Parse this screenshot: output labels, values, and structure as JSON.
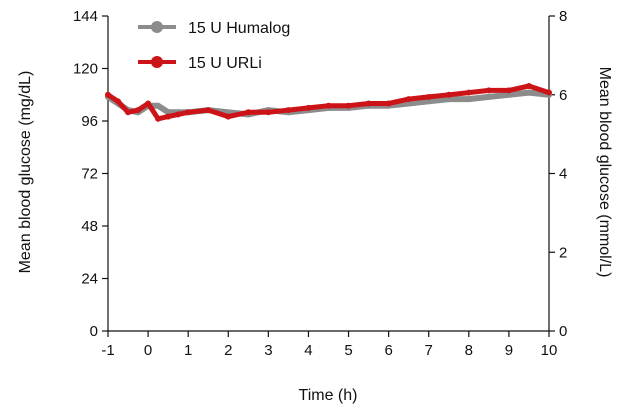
{
  "chart_data": {
    "type": "line",
    "title": "",
    "xlabel": "Time (h)",
    "ylabel": "Mean blood glucose (mg/dL)",
    "y2label": "Mean blood glucose (mmol/L)",
    "xlim": [
      -1,
      10
    ],
    "ylim": [
      0,
      144
    ],
    "y2lim": [
      0,
      8
    ],
    "x_ticks": [
      -1,
      0,
      1,
      2,
      3,
      4,
      5,
      6,
      7,
      8,
      9,
      10
    ],
    "x_tick_labels": [
      "-1",
      "0",
      "1",
      "2",
      "3",
      "4",
      "5",
      "6",
      "7",
      "8",
      "9",
      "10"
    ],
    "y_ticks": [
      0,
      24,
      48,
      72,
      96,
      120,
      144
    ],
    "y_tick_labels": [
      "0",
      "24",
      "48",
      "72",
      "96",
      "120",
      "144"
    ],
    "y2_ticks": [
      0,
      2,
      4,
      6,
      8
    ],
    "y2_tick_labels": [
      "0",
      "2",
      "4",
      "6",
      "8"
    ],
    "legend_position": "top-left",
    "grid": false,
    "x": [
      -1,
      -0.75,
      -0.5,
      -0.25,
      0,
      0.25,
      0.5,
      0.75,
      1,
      1.5,
      2,
      2.5,
      3,
      3.5,
      4,
      4.5,
      5,
      5.5,
      6,
      6.5,
      7,
      7.5,
      8,
      8.5,
      9,
      9.5,
      10
    ],
    "series": [
      {
        "name": "15 U Humalog",
        "color": "#8c8c8c",
        "values": [
          107,
          104,
          101,
          100,
          103,
          103,
          100,
          100,
          100,
          101,
          100,
          99,
          101,
          100,
          101,
          102,
          102,
          103,
          103,
          104,
          105,
          106,
          106,
          107,
          108,
          109,
          108
        ]
      },
      {
        "name": "15 U URLi",
        "color": "#cc1418",
        "values": [
          108,
          105,
          100,
          101,
          104,
          97,
          98,
          99,
          100,
          101,
          98,
          100,
          100,
          101,
          102,
          103,
          103,
          104,
          104,
          106,
          107,
          108,
          109,
          110,
          110,
          112,
          109
        ]
      }
    ]
  }
}
